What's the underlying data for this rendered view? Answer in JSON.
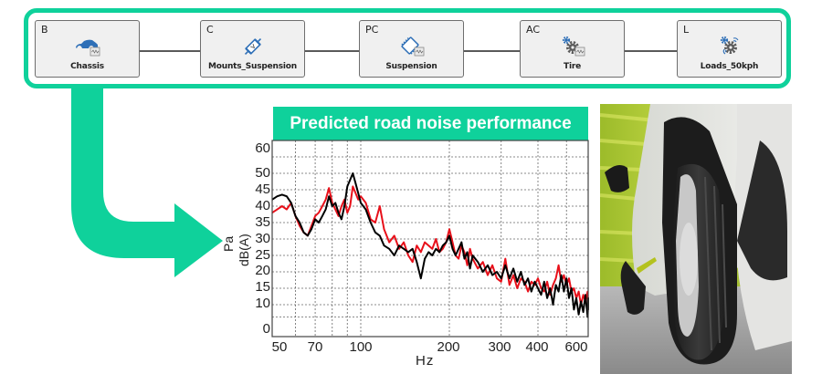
{
  "workflow": {
    "frame_color": "#0fd19b",
    "nodes": [
      {
        "code": "B",
        "label": "Chassis",
        "icon": "car-body-icon"
      },
      {
        "code": "C",
        "label": "Mounts_Suspension",
        "icon": "mount-bushing-icon"
      },
      {
        "code": "PC",
        "label": "Suspension",
        "icon": "suspension-component-icon"
      },
      {
        "code": "AC",
        "label": "Tire",
        "icon": "gears-icon"
      },
      {
        "code": "L",
        "label": "Loads_50kph",
        "icon": "gear-signal-icon"
      }
    ]
  },
  "arrow": {
    "color": "#0fd19b",
    "icon": "bent-arrow-icon"
  },
  "chart": {
    "title": "Predicted road noise performance",
    "title_bg": "#0fd19b",
    "ylabel_line1": "Pa",
    "ylabel_line2": "dB(A)",
    "xlabel": "Hz"
  },
  "photo": {
    "alt": "tire-on-road-photo"
  },
  "chart_data": {
    "type": "line",
    "title": "Predicted road noise performance",
    "xlabel": "Hz",
    "ylabel": "Pa dB(A)",
    "xscale": "log",
    "xlim": [
      50,
      630
    ],
    "ylim": [
      0,
      60
    ],
    "grid": true,
    "x_ticks": [
      50,
      70,
      100,
      200,
      300,
      400,
      600
    ],
    "x_tick_labels": [
      "50",
      "70",
      "100",
      "200",
      "300",
      "400",
      "600"
    ],
    "y_ticks": [
      0,
      10,
      15,
      20,
      25,
      30,
      35,
      40,
      45,
      50,
      60
    ],
    "y_tick_labels": [
      "0",
      "10",
      "15",
      "20",
      "25",
      "30",
      "35",
      "40",
      "45",
      "50",
      "60"
    ],
    "legend": null,
    "series": [
      {
        "name": "black",
        "color": "#000000",
        "points": [
          [
            50,
            42
          ],
          [
            52,
            43
          ],
          [
            54,
            43.5
          ],
          [
            56,
            43
          ],
          [
            58,
            41
          ],
          [
            60,
            37
          ],
          [
            62,
            35
          ],
          [
            64,
            32
          ],
          [
            66,
            31
          ],
          [
            68,
            33
          ],
          [
            70,
            36
          ],
          [
            72,
            35
          ],
          [
            74,
            37
          ],
          [
            76,
            39
          ],
          [
            78,
            43
          ],
          [
            80,
            40
          ],
          [
            82,
            41
          ],
          [
            84,
            38
          ],
          [
            86,
            36
          ],
          [
            88,
            40
          ],
          [
            90,
            46
          ],
          [
            92,
            48
          ],
          [
            94,
            50
          ],
          [
            96,
            47
          ],
          [
            98,
            44
          ],
          [
            100,
            41
          ],
          [
            104,
            39
          ],
          [
            108,
            35
          ],
          [
            112,
            32
          ],
          [
            116,
            31
          ],
          [
            120,
            28
          ],
          [
            125,
            27
          ],
          [
            130,
            25
          ],
          [
            135,
            28
          ],
          [
            140,
            27
          ],
          [
            145,
            26
          ],
          [
            150,
            27
          ],
          [
            155,
            23
          ],
          [
            160,
            18
          ],
          [
            165,
            24
          ],
          [
            170,
            26
          ],
          [
            175,
            25
          ],
          [
            180,
            27
          ],
          [
            185,
            26
          ],
          [
            190,
            28
          ],
          [
            195,
            29
          ],
          [
            200,
            31
          ],
          [
            205,
            27
          ],
          [
            210,
            25
          ],
          [
            215,
            27
          ],
          [
            220,
            29
          ],
          [
            225,
            24
          ],
          [
            230,
            26
          ],
          [
            235,
            21
          ],
          [
            240,
            25
          ],
          [
            250,
            23
          ],
          [
            260,
            20
          ],
          [
            270,
            22
          ],
          [
            280,
            19
          ],
          [
            290,
            20
          ],
          [
            300,
            18
          ],
          [
            310,
            22
          ],
          [
            320,
            18
          ],
          [
            330,
            21
          ],
          [
            340,
            17
          ],
          [
            350,
            20
          ],
          [
            360,
            16
          ],
          [
            370,
            18
          ],
          [
            380,
            14
          ],
          [
            390,
            17
          ],
          [
            400,
            15
          ],
          [
            410,
            13
          ],
          [
            420,
            17
          ],
          [
            430,
            12
          ],
          [
            440,
            15
          ],
          [
            450,
            10
          ],
          [
            460,
            16
          ],
          [
            470,
            14
          ],
          [
            480,
            19
          ],
          [
            490,
            14
          ],
          [
            500,
            18
          ],
          [
            510,
            12
          ],
          [
            520,
            15
          ],
          [
            530,
            8
          ],
          [
            540,
            12
          ],
          [
            550,
            6
          ],
          [
            560,
            11
          ],
          [
            570,
            7
          ],
          [
            580,
            13
          ],
          [
            590,
            5
          ],
          [
            600,
            10
          ],
          [
            610,
            8
          ],
          [
            620,
            12
          ],
          [
            630,
            9
          ]
        ]
      },
      {
        "name": "red",
        "color": "#e8101a",
        "points": [
          [
            50,
            38
          ],
          [
            52,
            39
          ],
          [
            54,
            40
          ],
          [
            56,
            39
          ],
          [
            58,
            41
          ],
          [
            60,
            37
          ],
          [
            62,
            34
          ],
          [
            64,
            32
          ],
          [
            66,
            31
          ],
          [
            68,
            34
          ],
          [
            70,
            37
          ],
          [
            72,
            38
          ],
          [
            74,
            40
          ],
          [
            76,
            42
          ],
          [
            78,
            45.5
          ],
          [
            80,
            41
          ],
          [
            82,
            39
          ],
          [
            84,
            37
          ],
          [
            86,
            40
          ],
          [
            88,
            42
          ],
          [
            90,
            38
          ],
          [
            92,
            40
          ],
          [
            94,
            46
          ],
          [
            96,
            44
          ],
          [
            98,
            42
          ],
          [
            100,
            43
          ],
          [
            104,
            41
          ],
          [
            108,
            36
          ],
          [
            112,
            35
          ],
          [
            116,
            40
          ],
          [
            120,
            33
          ],
          [
            125,
            29
          ],
          [
            130,
            31
          ],
          [
            135,
            27
          ],
          [
            140,
            29
          ],
          [
            145,
            25
          ],
          [
            150,
            23
          ],
          [
            155,
            28
          ],
          [
            160,
            26
          ],
          [
            165,
            29
          ],
          [
            170,
            28
          ],
          [
            175,
            27
          ],
          [
            180,
            30
          ],
          [
            185,
            26
          ],
          [
            190,
            27
          ],
          [
            195,
            29
          ],
          [
            200,
            33
          ],
          [
            205,
            29
          ],
          [
            210,
            25
          ],
          [
            215,
            24
          ],
          [
            220,
            28
          ],
          [
            225,
            26
          ],
          [
            230,
            22
          ],
          [
            235,
            27
          ],
          [
            240,
            24
          ],
          [
            250,
            21
          ],
          [
            260,
            23
          ],
          [
            270,
            19
          ],
          [
            280,
            22
          ],
          [
            290,
            18
          ],
          [
            300,
            17
          ],
          [
            310,
            24
          ],
          [
            320,
            16
          ],
          [
            330,
            19
          ],
          [
            340,
            15
          ],
          [
            350,
            18
          ],
          [
            360,
            17
          ],
          [
            370,
            14
          ],
          [
            380,
            17
          ],
          [
            390,
            16
          ],
          [
            400,
            18
          ],
          [
            410,
            15
          ],
          [
            420,
            14
          ],
          [
            430,
            17
          ],
          [
            440,
            13
          ],
          [
            450,
            16
          ],
          [
            460,
            18
          ],
          [
            470,
            22
          ],
          [
            480,
            17
          ],
          [
            490,
            19
          ],
          [
            500,
            16
          ],
          [
            510,
            18
          ],
          [
            520,
            14
          ],
          [
            530,
            15
          ],
          [
            540,
            12
          ],
          [
            550,
            14
          ],
          [
            560,
            10
          ],
          [
            570,
            13
          ],
          [
            580,
            11
          ],
          [
            590,
            14
          ],
          [
            600,
            9
          ],
          [
            610,
            11
          ],
          [
            620,
            8
          ],
          [
            630,
            12
          ]
        ]
      }
    ]
  }
}
